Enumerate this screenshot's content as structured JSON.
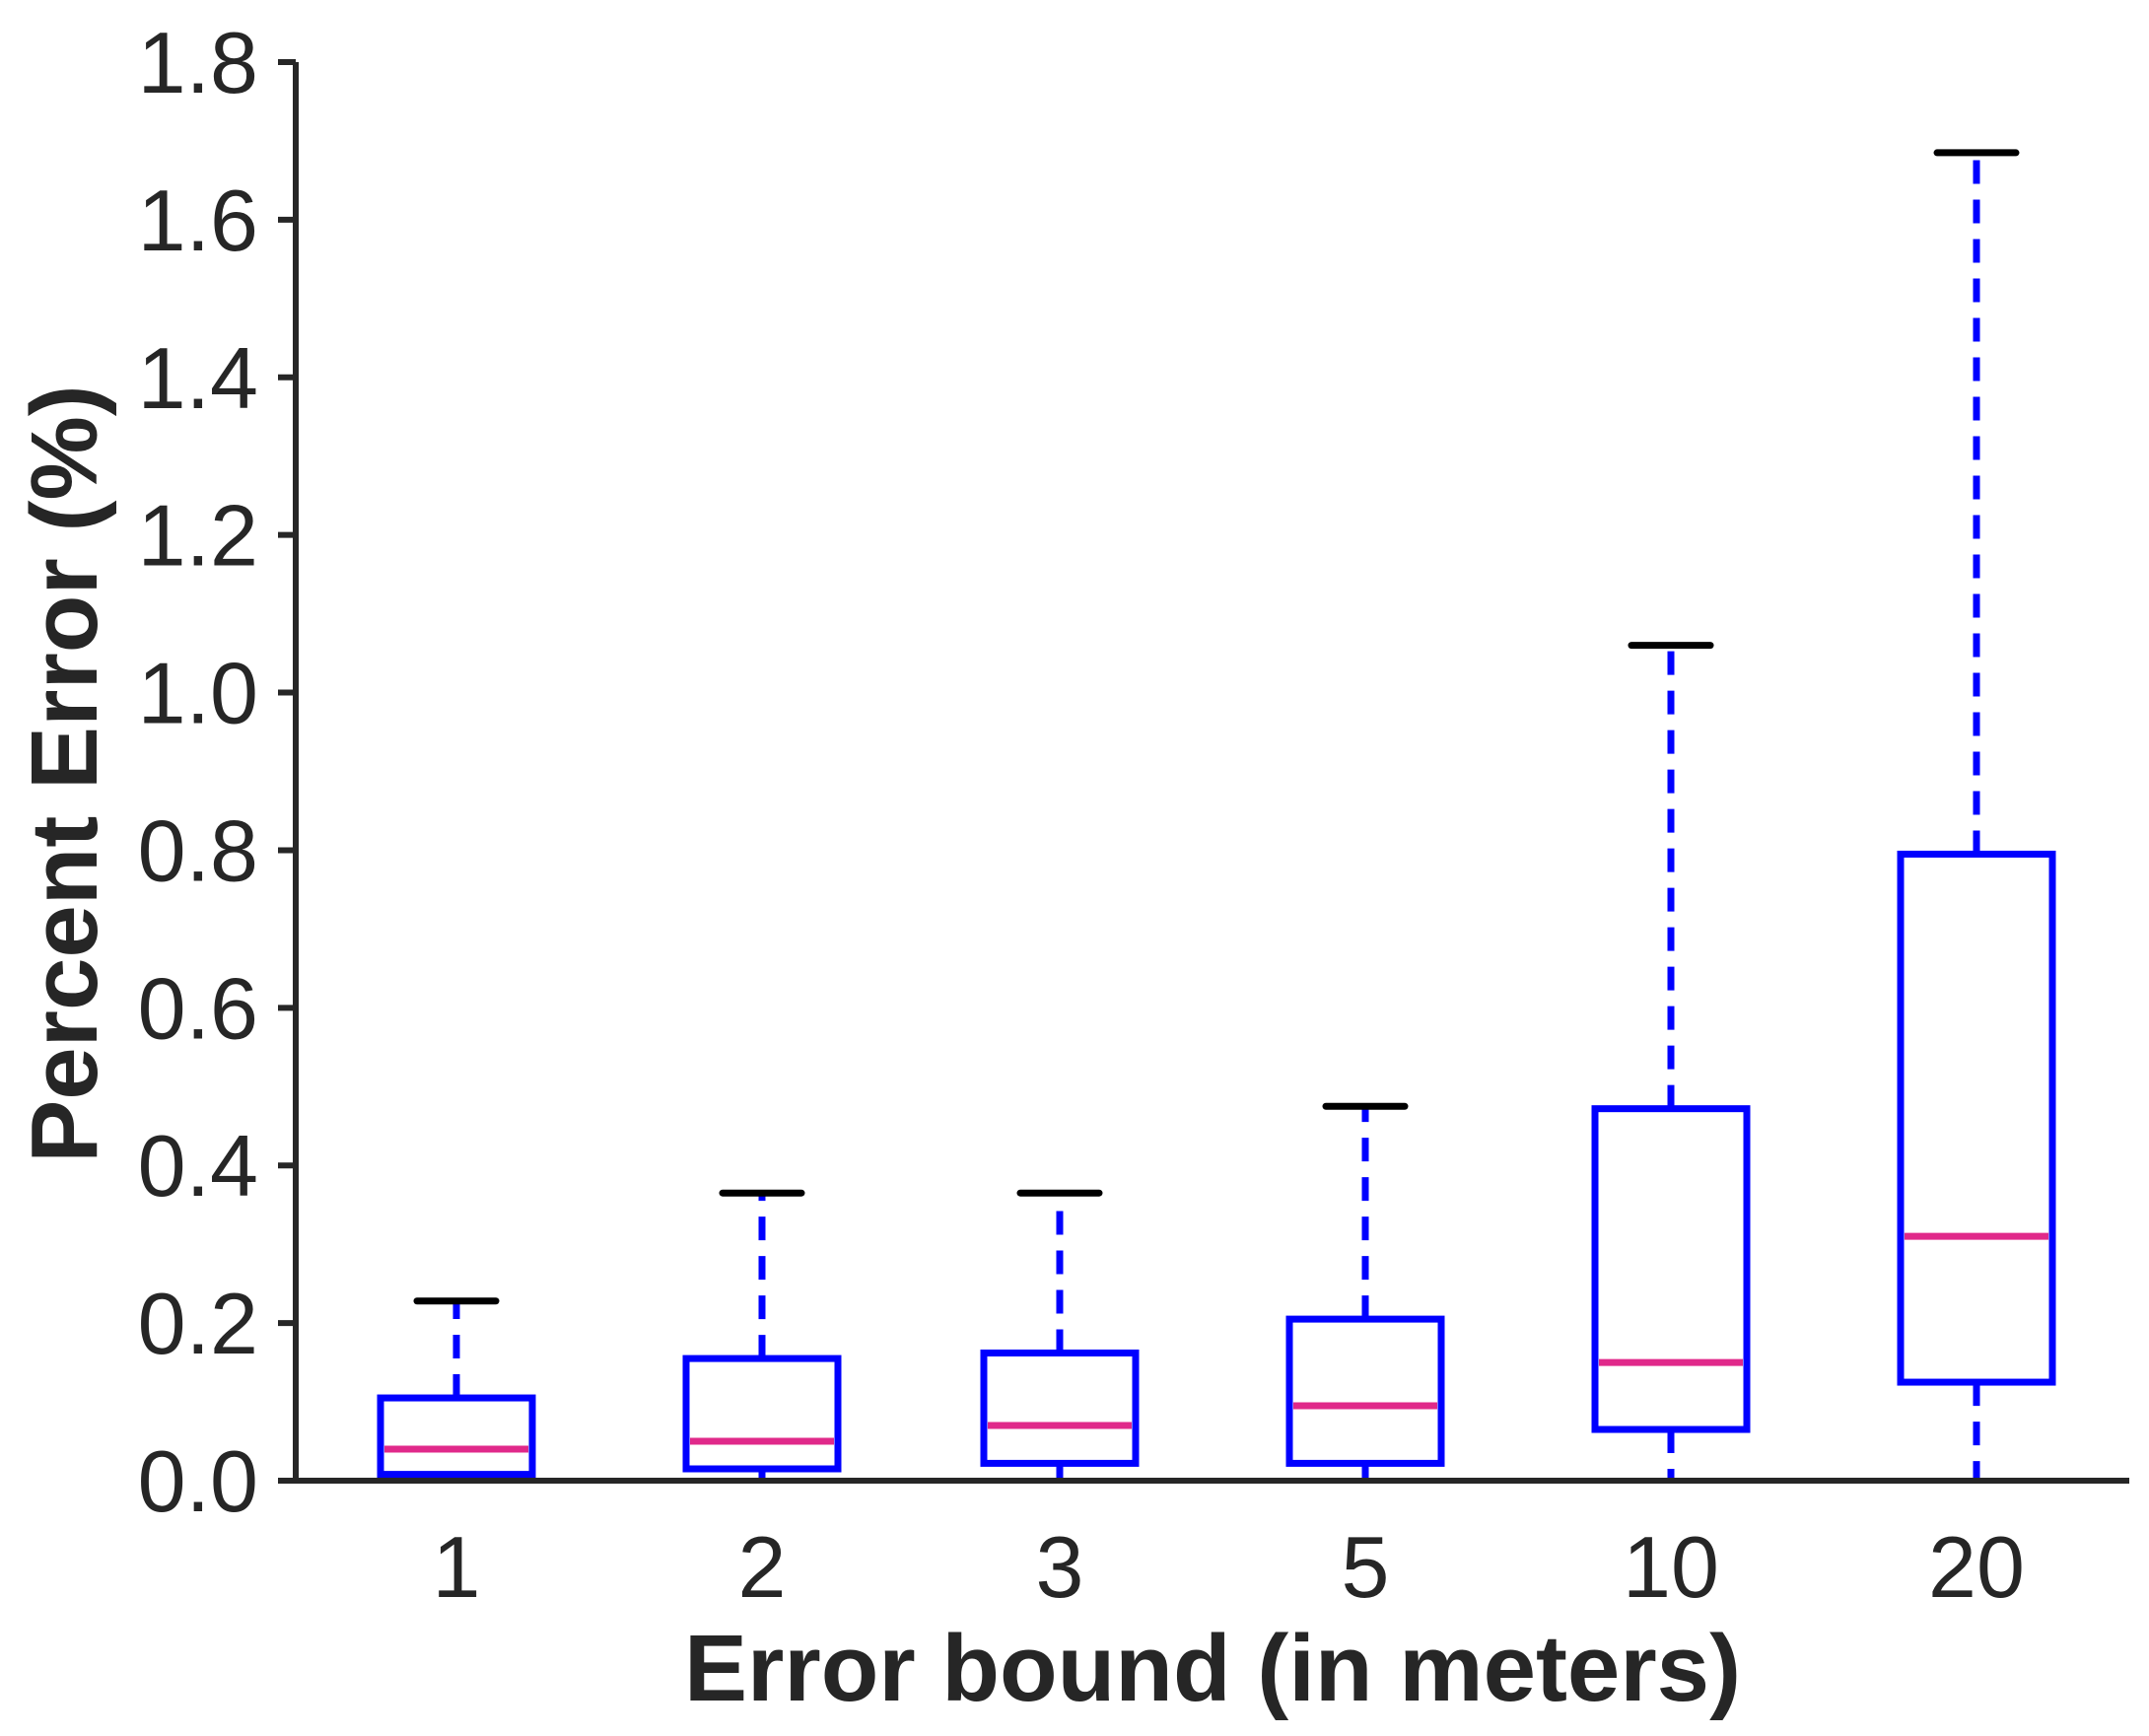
{
  "chart_data": {
    "type": "box",
    "xlabel": "Error bound (in meters)",
    "ylabel": "Percent Error (%)",
    "ylim": [
      0,
      1.8
    ],
    "yticks": [
      "0.0",
      "0.2",
      "0.4",
      "0.6",
      "0.8",
      "1.0",
      "1.2",
      "1.4",
      "1.6",
      "1.8"
    ],
    "categories": [
      "1",
      "2",
      "3",
      "5",
      "10",
      "20"
    ],
    "boxes": [
      {
        "whisker_low": 0.0,
        "q1": 0.008,
        "median": 0.04,
        "q3": 0.105,
        "whisker_high": 0.228
      },
      {
        "whisker_low": 0.0,
        "q1": 0.015,
        "median": 0.05,
        "q3": 0.155,
        "whisker_high": 0.365
      },
      {
        "whisker_low": 0.0,
        "q1": 0.022,
        "median": 0.07,
        "q3": 0.162,
        "whisker_high": 0.365
      },
      {
        "whisker_low": 0.0,
        "q1": 0.022,
        "median": 0.095,
        "q3": 0.205,
        "whisker_high": 0.475
      },
      {
        "whisker_low": 0.0,
        "q1": 0.065,
        "median": 0.15,
        "q3": 0.472,
        "whisker_high": 1.06
      },
      {
        "whisker_low": 0.0,
        "q1": 0.125,
        "median": 0.31,
        "q3": 0.795,
        "whisker_high": 1.685
      }
    ],
    "colors": {
      "box": "#0000ff",
      "median": "#e0298a",
      "cap": "#000000",
      "axis": "#262626"
    },
    "grid": false,
    "legend": "none"
  }
}
